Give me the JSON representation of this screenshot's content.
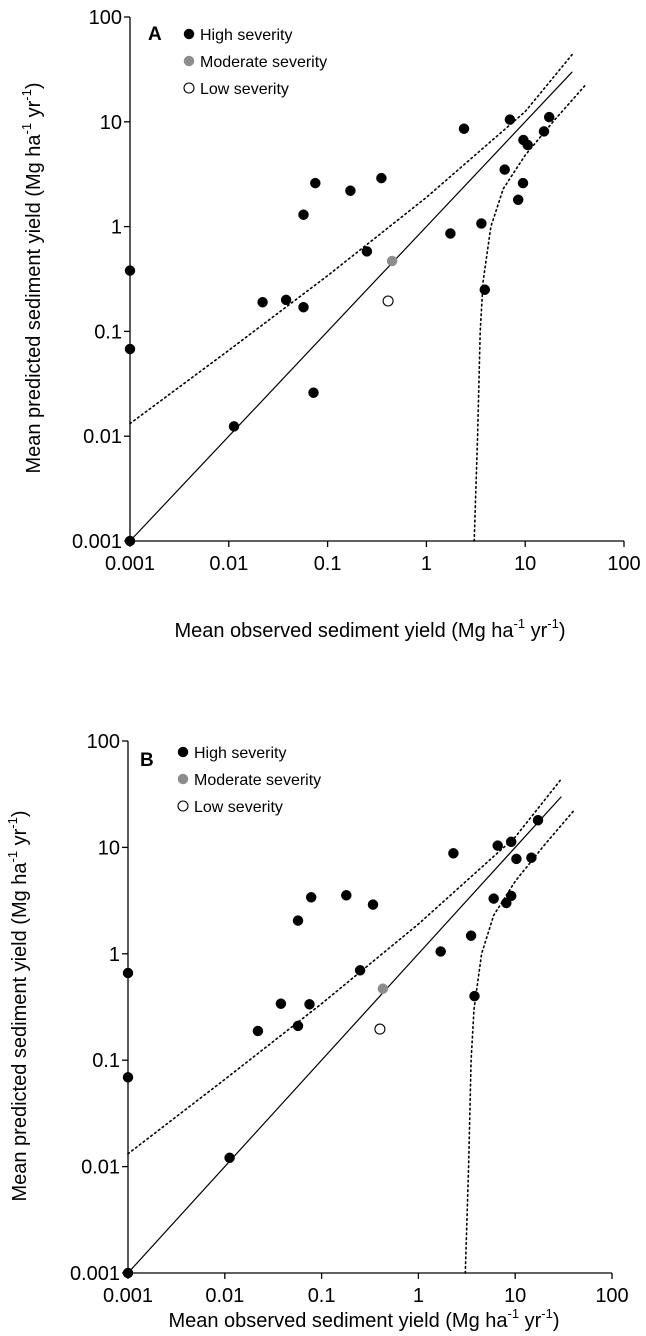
{
  "chart_data": [
    {
      "type": "scatter",
      "panel_label": "A",
      "xlabel": {
        "main": "Mean observed sediment yield (Mg ha",
        "exp1": "-1",
        "mid": " yr",
        "exp2": "-1",
        "end": ")"
      },
      "ylabel": {
        "main": "Mean predicted sediment yield (Mg ha",
        "exp1": "-1",
        "mid": " yr",
        "exp2": "-1",
        "end": ")"
      },
      "x_scale": "log",
      "y_scale": "log",
      "xlim": [
        0.001,
        100
      ],
      "ylim": [
        0.001,
        100
      ],
      "x_ticks": [
        "0.001",
        "0.01",
        "0.1",
        "1",
        "10",
        "100"
      ],
      "y_ticks": [
        "0.001",
        "0.01",
        "0.1",
        "1",
        "10",
        "100"
      ],
      "grid": false,
      "legend_position": "top-left",
      "series": [
        {
          "name": "High severity",
          "marker": "filled-circle",
          "color": "#000000",
          "points": [
            [
              0.001,
              0.38
            ],
            [
              0.001,
              0.068
            ],
            [
              0.001,
              0.001
            ],
            [
              0.0113,
              0.0124
            ],
            [
              0.022,
              0.19
            ],
            [
              0.038,
              0.2
            ],
            [
              0.057,
              0.17
            ],
            [
              0.057,
              1.3
            ],
            [
              0.072,
              0.026
            ],
            [
              0.075,
              2.6
            ],
            [
              0.17,
              2.2
            ],
            [
              0.25,
              0.58
            ],
            [
              0.35,
              2.9
            ],
            [
              1.75,
              0.86
            ],
            [
              2.4,
              8.6
            ],
            [
              3.6,
              1.07
            ],
            [
              3.9,
              0.25
            ],
            [
              6.2,
              3.5
            ],
            [
              7.0,
              10.5
            ],
            [
              8.5,
              1.8
            ],
            [
              9.5,
              2.6
            ],
            [
              9.6,
              6.7
            ],
            [
              10.6,
              6.0
            ],
            [
              15.5,
              8.1
            ],
            [
              17.5,
              11.1
            ]
          ]
        },
        {
          "name": "Moderate severity",
          "marker": "filled-circle",
          "color": "#8c8c8c",
          "points": [
            [
              0.45,
              0.47
            ]
          ]
        },
        {
          "name": "Low severity",
          "marker": "open-circle",
          "color": "#000000",
          "points": [
            [
              0.41,
              0.195
            ]
          ]
        }
      ],
      "lines": [
        {
          "style": "solid",
          "points": [
            [
              0.001,
              0.001
            ],
            [
              30,
              30
            ]
          ]
        },
        {
          "style": "dotted",
          "points": [
            [
              0.001,
              0.0132
            ],
            [
              0.01,
              0.066
            ],
            [
              0.1,
              0.34
            ],
            [
              1,
              1.9
            ],
            [
              10,
              12.5
            ],
            [
              30,
              44
            ]
          ]
        },
        {
          "style": "dotted",
          "points": [
            [
              3.05,
              0.001
            ],
            [
              3.3,
              0.01
            ],
            [
              3.5,
              0.1
            ],
            [
              3.75,
              0.3
            ],
            [
              4.5,
              1.0
            ],
            [
              6,
              2.3
            ],
            [
              10,
              4.8
            ],
            [
              20,
              10.5
            ],
            [
              40,
              22
            ]
          ]
        }
      ]
    },
    {
      "type": "scatter",
      "panel_label": "B",
      "xlabel": {
        "main": "Mean observed sediment yield (Mg ha",
        "exp1": "-1",
        "mid": " yr",
        "exp2": "-1",
        "end": ")"
      },
      "ylabel": {
        "main": "Mean predicted sediment yield (Mg ha",
        "exp1": "-1",
        "mid": " yr",
        "exp2": "-1",
        "end": ")"
      },
      "x_scale": "log",
      "y_scale": "log",
      "xlim": [
        0.001,
        100
      ],
      "ylim": [
        0.001,
        100
      ],
      "x_ticks": [
        "0.001",
        "0.01",
        "0.1",
        "1",
        "10",
        "100"
      ],
      "y_ticks": [
        "0.001",
        "0.01",
        "0.1",
        "1",
        "10",
        "100"
      ],
      "grid": false,
      "legend_position": "top-left",
      "series": [
        {
          "name": "High severity",
          "marker": "filled-circle",
          "color": "#000000",
          "points": [
            [
              0.001,
              0.66
            ],
            [
              0.001,
              0.069
            ],
            [
              0.001,
              0.001
            ],
            [
              0.0112,
              0.0121
            ],
            [
              0.022,
              0.188
            ],
            [
              0.038,
              0.34
            ],
            [
              0.057,
              0.21
            ],
            [
              0.057,
              2.05
            ],
            [
              0.075,
              0.335
            ],
            [
              0.078,
              3.4
            ],
            [
              0.18,
              3.55
            ],
            [
              0.25,
              0.7
            ],
            [
              0.34,
              2.9
            ],
            [
              1.7,
              1.05
            ],
            [
              2.3,
              8.8
            ],
            [
              3.5,
              1.48
            ],
            [
              3.8,
              0.4
            ],
            [
              6.0,
              3.3
            ],
            [
              6.6,
              10.4
            ],
            [
              8.1,
              3.0
            ],
            [
              9.1,
              3.5
            ],
            [
              9.1,
              11.3
            ],
            [
              10.3,
              7.8
            ],
            [
              14.7,
              8.0
            ],
            [
              17.2,
              18.0
            ]
          ]
        },
        {
          "name": "Moderate severity",
          "marker": "filled-circle",
          "color": "#8c8c8c",
          "points": [
            [
              0.43,
              0.47
            ]
          ]
        },
        {
          "name": "Low severity",
          "marker": "open-circle",
          "color": "#000000",
          "points": [
            [
              0.4,
              0.196
            ]
          ]
        }
      ],
      "lines": [
        {
          "style": "solid",
          "points": [
            [
              0.001,
              0.001
            ],
            [
              30,
              30
            ]
          ]
        },
        {
          "style": "dotted",
          "points": [
            [
              0.001,
              0.0132
            ],
            [
              0.01,
              0.066
            ],
            [
              0.1,
              0.34
            ],
            [
              1,
              1.9
            ],
            [
              10,
              12.5
            ],
            [
              30,
              44
            ]
          ]
        },
        {
          "style": "dotted",
          "points": [
            [
              3.05,
              0.001
            ],
            [
              3.3,
              0.01
            ],
            [
              3.5,
              0.1
            ],
            [
              3.75,
              0.3
            ],
            [
              4.5,
              1.0
            ],
            [
              6,
              2.3
            ],
            [
              10,
              4.8
            ],
            [
              20,
              10.5
            ],
            [
              40,
              22
            ]
          ]
        }
      ]
    }
  ]
}
